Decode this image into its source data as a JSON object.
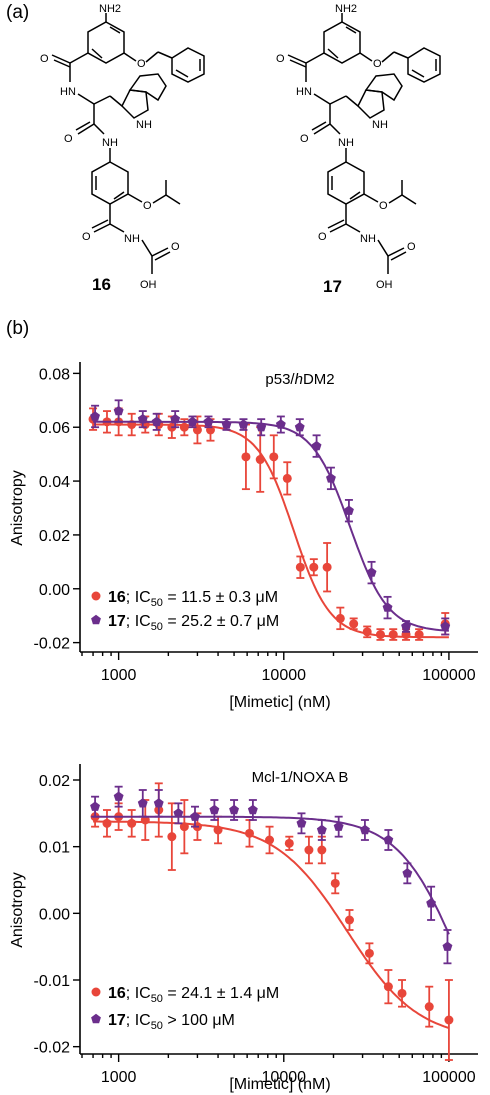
{
  "panels": {
    "a": "(a)",
    "b": "(b)"
  },
  "structures": [
    {
      "compound": "16",
      "labels": [
        "NH2",
        "O",
        "O",
        "HN",
        "NH",
        "O",
        "NH",
        "O",
        "O",
        "NH",
        "OH",
        "O"
      ]
    },
    {
      "compound": "17",
      "labels": [
        "NH2",
        "O",
        "O",
        "HN",
        "NH",
        "O",
        "NH",
        "O",
        "O",
        "NH",
        "OH",
        "O"
      ]
    }
  ],
  "colors": {
    "compound16": "#e8463a",
    "compound17": "#6b2e8c"
  },
  "chart_data": [
    {
      "type": "scatter",
      "title": "p53/hDM2",
      "title_parts": [
        "p53/",
        "h",
        "DM2"
      ],
      "xlabel": "[Mimetic] (nM)",
      "ylabel": "Anisotropy",
      "x_scale": "log",
      "xlim": [
        600,
        150000
      ],
      "ylim": [
        -0.022,
        0.082
      ],
      "yticks": [
        "0.08",
        "0.06",
        "0.04",
        "0.02",
        "0.00",
        "-0.02"
      ],
      "ytick_values": [
        0.08,
        0.06,
        0.04,
        0.02,
        0.0,
        -0.02
      ],
      "xticks": [
        "1000",
        "10000",
        "100000"
      ],
      "xtick_values": [
        1000,
        10000,
        100000
      ],
      "legend_position": "bottom-left",
      "series": [
        {
          "name": "16",
          "legend": {
            "compound": "16",
            "ic": "IC",
            "sub": "50",
            "value": " = 11.5 ± 0.3 μM"
          },
          "color": "#e8463a",
          "marker": "circle",
          "fit": {
            "top": 0.061,
            "bottom": -0.018,
            "ic50": 11500,
            "hill": 4.0
          },
          "points": [
            {
              "x": 700,
              "y": 0.063,
              "err": 0.004
            },
            {
              "x": 850,
              "y": 0.062,
              "err": 0.004
            },
            {
              "x": 1000,
              "y": 0.062,
              "err": 0.005
            },
            {
              "x": 1200,
              "y": 0.061,
              "err": 0.004
            },
            {
              "x": 1450,
              "y": 0.061,
              "err": 0.003
            },
            {
              "x": 1750,
              "y": 0.061,
              "err": 0.004
            },
            {
              "x": 2100,
              "y": 0.06,
              "err": 0.004
            },
            {
              "x": 2500,
              "y": 0.06,
              "err": 0.003
            },
            {
              "x": 3000,
              "y": 0.059,
              "err": 0.005
            },
            {
              "x": 3600,
              "y": 0.059,
              "err": 0.004
            },
            {
              "x": 5900,
              "y": 0.049,
              "err": 0.012
            },
            {
              "x": 7200,
              "y": 0.048,
              "err": 0.012
            },
            {
              "x": 8700,
              "y": 0.049,
              "err": 0.008
            },
            {
              "x": 10500,
              "y": 0.041,
              "err": 0.006
            },
            {
              "x": 12600,
              "y": 0.008,
              "err": 0.004
            },
            {
              "x": 15200,
              "y": 0.008,
              "err": 0.003
            },
            {
              "x": 18300,
              "y": 0.008,
              "err": 0.009
            },
            {
              "x": 22000,
              "y": -0.011,
              "err": 0.004
            },
            {
              "x": 26500,
              "y": -0.013,
              "err": 0.002
            },
            {
              "x": 32000,
              "y": -0.016,
              "err": 0.002
            },
            {
              "x": 38500,
              "y": -0.017,
              "err": 0.002
            },
            {
              "x": 46000,
              "y": -0.017,
              "err": 0.002
            },
            {
              "x": 55000,
              "y": -0.017,
              "err": 0.002
            },
            {
              "x": 66000,
              "y": -0.017,
              "err": 0.002
            },
            {
              "x": 95000,
              "y": -0.013,
              "err": 0.004
            }
          ]
        },
        {
          "name": "17",
          "legend": {
            "compound": "17",
            "ic": "IC",
            "sub": "50",
            "value": " = 25.2 ± 0.7 μM"
          },
          "color": "#6b2e8c",
          "marker": "pentagon",
          "fit": {
            "top": 0.062,
            "bottom": -0.016,
            "ic50": 25200,
            "hill": 3.8
          },
          "points": [
            {
              "x": 720,
              "y": 0.064,
              "err": 0.004
            },
            {
              "x": 1000,
              "y": 0.066,
              "err": 0.004
            },
            {
              "x": 1400,
              "y": 0.063,
              "err": 0.003
            },
            {
              "x": 1700,
              "y": 0.062,
              "err": 0.003
            },
            {
              "x": 2200,
              "y": 0.063,
              "err": 0.003
            },
            {
              "x": 2800,
              "y": 0.062,
              "err": 0.002
            },
            {
              "x": 3500,
              "y": 0.062,
              "err": 0.002
            },
            {
              "x": 4500,
              "y": 0.061,
              "err": 0.002
            },
            {
              "x": 5700,
              "y": 0.061,
              "err": 0.002
            },
            {
              "x": 7300,
              "y": 0.06,
              "err": 0.003
            },
            {
              "x": 9600,
              "y": 0.061,
              "err": 0.003
            },
            {
              "x": 12500,
              "y": 0.06,
              "err": 0.003
            },
            {
              "x": 15800,
              "y": 0.053,
              "err": 0.004
            },
            {
              "x": 19300,
              "y": 0.041,
              "err": 0.004
            },
            {
              "x": 24800,
              "y": 0.029,
              "err": 0.004
            },
            {
              "x": 34000,
              "y": 0.006,
              "err": 0.004
            },
            {
              "x": 42500,
              "y": -0.007,
              "err": 0.004
            },
            {
              "x": 55000,
              "y": -0.014,
              "err": 0.002
            },
            {
              "x": 95000,
              "y": -0.014,
              "err": 0.003
            }
          ]
        }
      ]
    },
    {
      "type": "scatter",
      "title": "Mcl-1/NOXA B",
      "title_parts": [
        "Mcl-1/NOXA B",
        "",
        ""
      ],
      "xlabel": "[Mimetic] (nM)",
      "ylabel": "Anisotropy",
      "x_scale": "log",
      "xlim": [
        600,
        150000
      ],
      "ylim": [
        -0.0205,
        0.0215
      ],
      "yticks": [
        "0.02",
        "0.01",
        "0.00",
        "-0.01",
        "-0.02"
      ],
      "ytick_values": [
        0.02,
        0.01,
        0.0,
        -0.01,
        -0.02
      ],
      "xticks": [
        "1000",
        "10000",
        "100000"
      ],
      "xtick_values": [
        1000,
        10000,
        100000
      ],
      "legend_position": "bottom-left",
      "series": [
        {
          "name": "16",
          "legend": {
            "compound": "16",
            "ic": "IC",
            "sub": "50",
            "value": " = 24.1 ± 1.4 μM"
          },
          "color": "#e8463a",
          "marker": "circle",
          "fit": {
            "top": 0.0138,
            "bottom": -0.019,
            "ic50": 24100,
            "hill": 2.0
          },
          "points": [
            {
              "x": 720,
              "y": 0.0145,
              "err": 0.0015
            },
            {
              "x": 850,
              "y": 0.0135,
              "err": 0.002
            },
            {
              "x": 1000,
              "y": 0.0145,
              "err": 0.002
            },
            {
              "x": 1200,
              "y": 0.0135,
              "err": 0.002
            },
            {
              "x": 1450,
              "y": 0.014,
              "err": 0.003
            },
            {
              "x": 1750,
              "y": 0.0155,
              "err": 0.004
            },
            {
              "x": 2100,
              "y": 0.0115,
              "err": 0.005
            },
            {
              "x": 2500,
              "y": 0.013,
              "err": 0.004
            },
            {
              "x": 3000,
              "y": 0.013,
              "err": 0.002
            },
            {
              "x": 4000,
              "y": 0.0125,
              "err": 0.002
            },
            {
              "x": 6200,
              "y": 0.012,
              "err": 0.002
            },
            {
              "x": 8200,
              "y": 0.011,
              "err": 0.002
            },
            {
              "x": 10800,
              "y": 0.0105,
              "err": 0.001
            },
            {
              "x": 14200,
              "y": 0.0095,
              "err": 0.002
            },
            {
              "x": 17000,
              "y": 0.0095,
              "err": 0.002
            },
            {
              "x": 20500,
              "y": 0.0045,
              "err": 0.0015
            },
            {
              "x": 25000,
              "y": -0.001,
              "err": 0.0015
            },
            {
              "x": 33000,
              "y": -0.006,
              "err": 0.0015
            },
            {
              "x": 43000,
              "y": -0.011,
              "err": 0.0025
            },
            {
              "x": 52000,
              "y": -0.012,
              "err": 0.002
            },
            {
              "x": 76000,
              "y": -0.014,
              "err": 0.003
            },
            {
              "x": 100000,
              "y": -0.016,
              "err": 0.006
            }
          ]
        },
        {
          "name": "17",
          "legend": {
            "compound": "17",
            "ic": "IC",
            "sub": "50",
            "value": " > 100 μM"
          },
          "color": "#6b2e8c",
          "marker": "pentagon",
          "fit": {
            "top": 0.0145,
            "bottom": -0.03,
            "ic50": 120000,
            "hill": 2.3
          },
          "points": [
            {
              "x": 720,
              "y": 0.016,
              "err": 0.0015
            },
            {
              "x": 1000,
              "y": 0.0175,
              "err": 0.0015
            },
            {
              "x": 1400,
              "y": 0.0165,
              "err": 0.002
            },
            {
              "x": 1750,
              "y": 0.0165,
              "err": 0.002
            },
            {
              "x": 2300,
              "y": 0.015,
              "err": 0.0015
            },
            {
              "x": 2900,
              "y": 0.0145,
              "err": 0.0015
            },
            {
              "x": 3800,
              "y": 0.0155,
              "err": 0.0015
            },
            {
              "x": 5000,
              "y": 0.0155,
              "err": 0.0015
            },
            {
              "x": 6500,
              "y": 0.0155,
              "err": 0.0015
            },
            {
              "x": 12800,
              "y": 0.0135,
              "err": 0.0015
            },
            {
              "x": 17000,
              "y": 0.0125,
              "err": 0.0015
            },
            {
              "x": 21500,
              "y": 0.013,
              "err": 0.0015
            },
            {
              "x": 31000,
              "y": 0.0125,
              "err": 0.0015
            },
            {
              "x": 43000,
              "y": 0.011,
              "err": 0.0015
            },
            {
              "x": 56000,
              "y": 0.006,
              "err": 0.0015
            },
            {
              "x": 78000,
              "y": 0.0015,
              "err": 0.0025
            },
            {
              "x": 98000,
              "y": -0.005,
              "err": 0.0025
            }
          ]
        }
      ]
    }
  ]
}
